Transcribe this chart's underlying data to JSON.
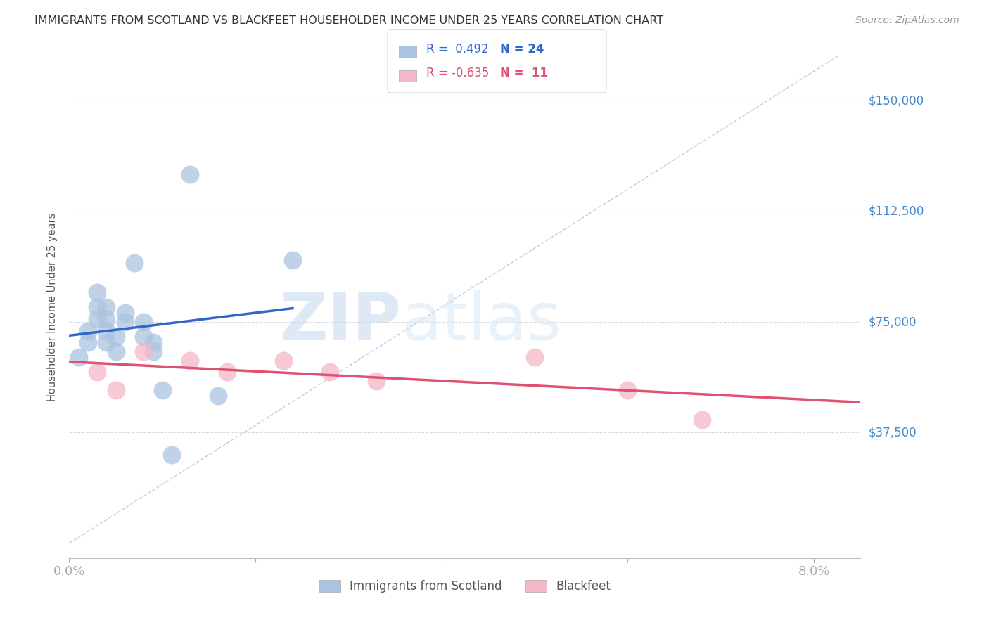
{
  "title": "IMMIGRANTS FROM SCOTLAND VS BLACKFEET HOUSEHOLDER INCOME UNDER 25 YEARS CORRELATION CHART",
  "source": "Source: ZipAtlas.com",
  "ylabel": "Householder Income Under 25 years",
  "ytick_labels": [
    "$150,000",
    "$112,500",
    "$75,000",
    "$37,500"
  ],
  "ytick_values": [
    150000,
    112500,
    75000,
    37500
  ],
  "ylim": [
    -5000,
    165000
  ],
  "xlim": [
    0.0,
    0.085
  ],
  "scotland_x": [
    0.001,
    0.002,
    0.002,
    0.003,
    0.003,
    0.003,
    0.004,
    0.004,
    0.004,
    0.004,
    0.005,
    0.005,
    0.006,
    0.006,
    0.007,
    0.008,
    0.008,
    0.009,
    0.009,
    0.01,
    0.011,
    0.013,
    0.016,
    0.024
  ],
  "scotland_y": [
    63000,
    68000,
    72000,
    76000,
    80000,
    85000,
    68000,
    72000,
    76000,
    80000,
    65000,
    70000,
    75000,
    78000,
    95000,
    70000,
    75000,
    65000,
    68000,
    52000,
    30000,
    125000,
    50000,
    96000
  ],
  "blackfeet_x": [
    0.003,
    0.005,
    0.008,
    0.013,
    0.017,
    0.023,
    0.028,
    0.033,
    0.05,
    0.06,
    0.068
  ],
  "blackfeet_y": [
    58000,
    52000,
    65000,
    62000,
    58000,
    62000,
    58000,
    55000,
    63000,
    52000,
    42000
  ],
  "scotland_color": "#aac4e0",
  "blackfeet_color": "#f5b8c8",
  "scotland_line_color": "#3366cc",
  "blackfeet_line_color": "#e05070",
  "diagonal_color": "#99bbdd",
  "diagonal_style": "--",
  "background_color": "#ffffff",
  "grid_color": "#cccccc",
  "title_color": "#333333",
  "axis_label_color": "#4488cc",
  "ytick_color": "#4488cc",
  "legend_r1": "R =  0.492",
  "legend_n1": "N = 24",
  "legend_r2": "R = -0.635",
  "legend_n2": "N =  11"
}
